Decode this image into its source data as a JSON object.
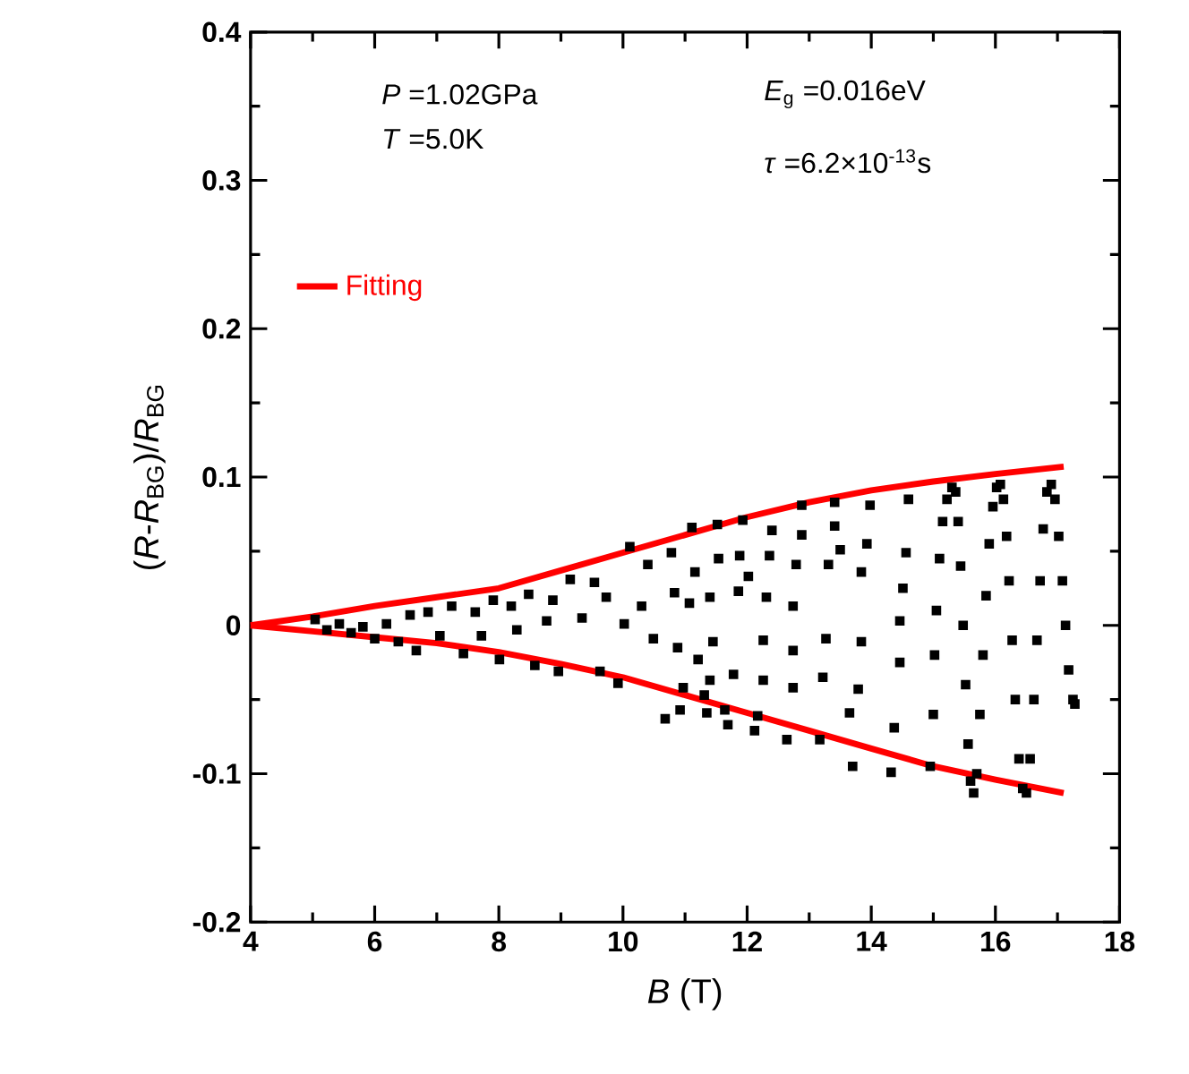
{
  "chart_data": {
    "type": "scatter",
    "xlabel": "*B* (T)",
    "ylabel": "(*R*-*R*$_{BG}$)/*R*$_{BG}$",
    "annotations": [
      "*P* =1.02GPa",
      "*T* =5.0K",
      "*E*$_{g}$ =0.016eV",
      "*τ* =6.2×10$^{-13}$s"
    ],
    "xlim": [
      4,
      18
    ],
    "xticks": [
      4,
      6,
      8,
      10,
      12,
      14,
      16,
      18
    ],
    "ylim": [
      -0.2,
      0.4
    ],
    "yticks": [
      -0.2,
      -0.1,
      0,
      0.1,
      0.2,
      0.3,
      0.4
    ],
    "legend": "top left",
    "series": [
      {
        "color": "#000000",
        "marker": "square",
        "x": [
          5.04,
          5.23,
          5.43,
          5.62,
          5.81,
          6.0,
          6.19,
          6.38,
          6.57,
          6.67,
          6.86,
          7.05,
          7.24,
          7.43,
          7.62,
          7.72,
          7.91,
          8.01,
          8.2,
          8.29,
          8.48,
          8.58,
          8.77,
          8.87,
          8.96,
          9.15,
          9.34,
          9.54,
          9.63,
          9.73,
          9.92,
          10.02,
          10.11,
          10.3,
          10.4,
          10.49,
          10.68,
          10.78,
          10.83,
          10.88,
          10.92,
          10.97,
          11.07,
          11.11,
          11.16,
          11.21,
          11.31,
          11.35,
          11.4,
          11.4,
          11.45,
          11.52,
          11.54,
          11.64,
          11.69,
          11.78,
          11.86,
          11.88,
          11.93,
          12.02,
          12.12,
          12.17,
          12.26,
          12.26,
          12.31,
          12.36,
          12.4,
          12.64,
          12.74,
          12.74,
          12.74,
          12.79,
          12.88,
          12.88,
          13.17,
          13.22,
          13.27,
          13.31,
          13.41,
          13.41,
          13.5,
          13.65,
          13.7,
          13.79,
          13.84,
          13.84,
          13.93,
          13.98,
          14.32,
          14.37,
          14.46,
          14.46,
          14.51,
          14.56,
          14.6,
          14.95,
          15.0,
          15.02,
          15.05,
          15.1,
          15.15,
          15.22,
          15.3,
          15.36,
          15.4,
          15.44,
          15.48,
          15.52,
          15.56,
          15.6,
          15.65,
          15.7,
          15.75,
          15.8,
          15.85,
          15.9,
          15.96,
          16.02,
          16.08,
          16.13,
          16.18,
          16.22,
          16.27,
          16.32,
          16.38,
          16.44,
          16.5,
          16.56,
          16.62,
          16.67,
          16.72,
          16.77,
          16.83,
          16.9,
          16.96,
          17.02,
          17.08,
          17.13,
          17.18,
          17.25,
          17.28
        ],
        "values": [
          0.004,
          -0.003,
          0.001,
          -0.005,
          -0.001,
          -0.009,
          0.001,
          -0.011,
          0.007,
          -0.017,
          0.009,
          -0.007,
          0.013,
          -0.019,
          0.009,
          -0.007,
          0.017,
          -0.023,
          0.013,
          -0.003,
          0.021,
          -0.027,
          0.003,
          0.017,
          -0.031,
          0.031,
          0.005,
          0.029,
          -0.031,
          0.019,
          -0.039,
          0.001,
          0.053,
          0.013,
          0.041,
          -0.009,
          -0.063,
          0.049,
          0.022,
          -0.015,
          -0.057,
          -0.042,
          0.015,
          0.066,
          0.036,
          -0.023,
          -0.047,
          -0.059,
          0.019,
          -0.037,
          -0.011,
          0.068,
          0.045,
          -0.057,
          -0.067,
          -0.033,
          0.023,
          0.047,
          0.071,
          0.033,
          -0.071,
          -0.061,
          -0.01,
          -0.037,
          0.019,
          0.047,
          0.064,
          -0.077,
          0.013,
          -0.017,
          -0.042,
          0.041,
          0.081,
          0.061,
          -0.077,
          -0.035,
          -0.009,
          0.041,
          0.083,
          0.067,
          0.051,
          -0.059,
          -0.095,
          -0.043,
          0.036,
          -0.011,
          0.055,
          0.081,
          -0.099,
          -0.069,
          0.003,
          -0.025,
          0.025,
          0.049,
          0.085,
          -0.095,
          -0.06,
          -0.02,
          0.01,
          0.045,
          0.07,
          0.085,
          0.093,
          0.09,
          0.07,
          0.04,
          0.0,
          -0.04,
          -0.08,
          -0.105,
          -0.113,
          -0.1,
          -0.06,
          -0.02,
          0.02,
          0.055,
          0.08,
          0.093,
          0.095,
          0.085,
          0.06,
          0.03,
          -0.01,
          -0.05,
          -0.09,
          -0.11,
          -0.113,
          -0.09,
          -0.05,
          -0.01,
          0.03,
          0.065,
          0.09,
          0.095,
          0.085,
          0.06,
          0.03,
          0.0,
          -0.03,
          -0.05,
          -0.053
        ]
      },
      {
        "type": "line",
        "name": "Fitting",
        "color": "#ff0000",
        "line_style": "solid",
        "x": [
          4,
          5,
          6,
          7,
          8,
          9,
          10,
          11,
          12,
          13,
          14,
          15,
          16,
          17.1
        ],
        "values": [
          0,
          0.006,
          0.013,
          0.019,
          0.025,
          0.037,
          0.049,
          0.061,
          0.073,
          0.083,
          0.091,
          0.097,
          0.102,
          0.107
        ]
      },
      {
        "type": "line",
        "color": "#ff0000",
        "line_style": "solid",
        "x": [
          4,
          5,
          6,
          7,
          8,
          9,
          10,
          11,
          12,
          13,
          14,
          15,
          16,
          17.1
        ],
        "values": [
          0,
          -0.004,
          -0.008,
          -0.012,
          -0.018,
          -0.026,
          -0.035,
          -0.047,
          -0.059,
          -0.071,
          -0.083,
          -0.095,
          -0.104,
          -0.113
        ]
      }
    ]
  }
}
